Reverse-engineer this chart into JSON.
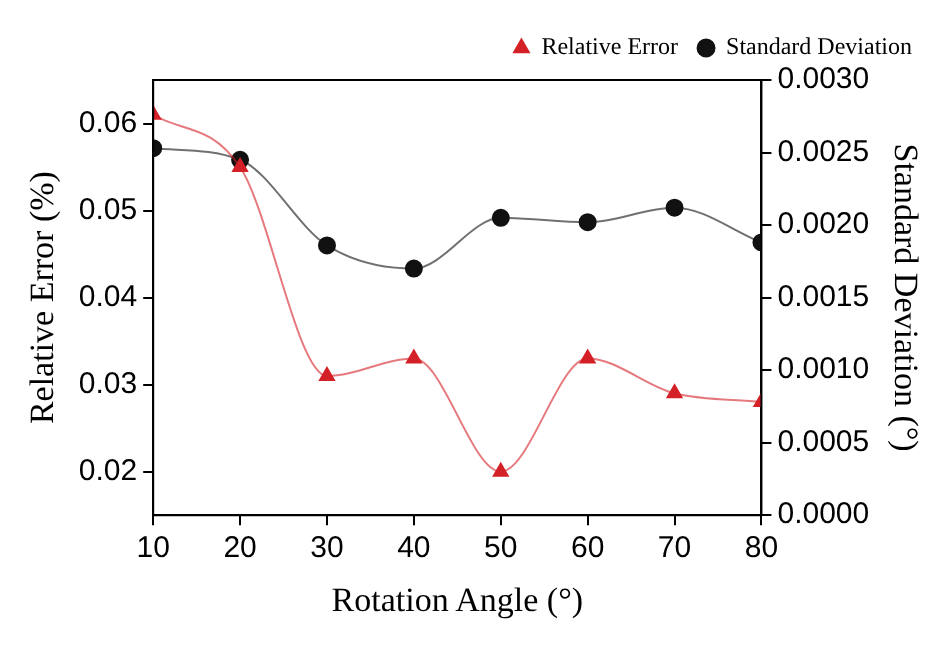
{
  "chart_data": {
    "type": "line",
    "xlabel": "Rotation Angle (°)",
    "ylabel": "Relative Error (%)",
    "y2label": "Standard Deviation (°)",
    "x": [
      10,
      20,
      30,
      40,
      50,
      60,
      70,
      80
    ],
    "series": [
      {
        "name": "Relative Error",
        "color": "#d42027",
        "marker": "triangle",
        "values": [
          0.061,
          0.055,
          0.031,
          0.033,
          0.02,
          0.033,
          0.029,
          0.028
        ]
      },
      {
        "name": "Standard Deviation",
        "color": "#111111",
        "marker": "circle",
        "axis": "y2",
        "values": [
          0.00253,
          0.00245,
          0.00186,
          0.0017,
          0.00205,
          0.00202,
          0.00212,
          0.00188
        ]
      }
    ],
    "xlim": [
      10,
      80
    ],
    "xticks": [
      10,
      20,
      30,
      40,
      50,
      60,
      70,
      80
    ],
    "ylim": [
      0.015,
      0.065
    ],
    "yticks": [
      0.02,
      0.03,
      0.04,
      0.05,
      0.06
    ],
    "y2lim": [
      0,
      0.003
    ],
    "y2ticks": [
      {
        "value": 0,
        "label": "0.0000"
      },
      {
        "value": 0.0005,
        "label": "0.0005"
      },
      {
        "value": 0.001,
        "label": "0.0010"
      },
      {
        "value": 0.0015,
        "label": "0.0015"
      },
      {
        "value": 0.002,
        "label": "0.0020"
      },
      {
        "value": 0.0025,
        "label": "0.0025"
      },
      {
        "value": 0.003,
        "label": "0.0030"
      }
    ],
    "grid": false,
    "legend": "top right"
  }
}
